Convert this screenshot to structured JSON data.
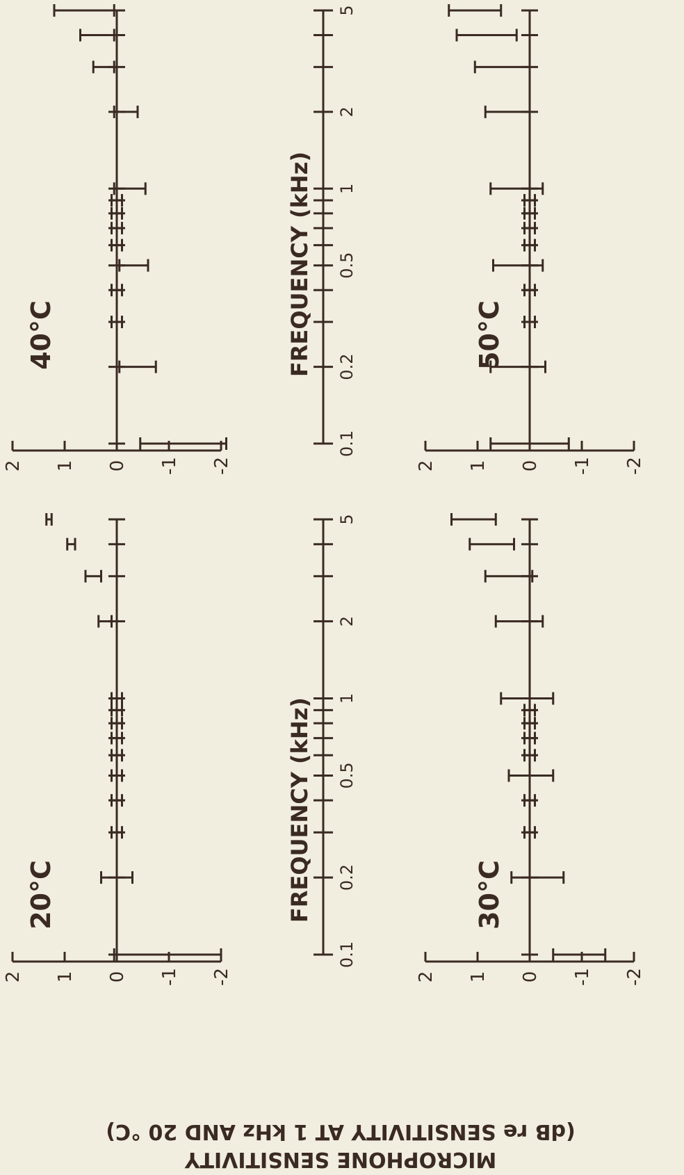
{
  "chart_data": [
    {
      "type": "scatter",
      "title": "20°C",
      "xscale": "log",
      "xticks": [
        "0.1",
        "0.2",
        "0.5",
        "1",
        "2",
        "5"
      ],
      "yticks": [
        "2",
        "1",
        "0",
        "-1",
        "-2"
      ],
      "ylim": [
        -2,
        2
      ],
      "points": [
        {
          "x": 0.1,
          "y_lo": -2.0,
          "y_hi": 0.05
        },
        {
          "x": 0.2,
          "y_lo": -0.3,
          "y_hi": 0.3
        },
        {
          "x": 0.3,
          "y_lo": -0.1,
          "y_hi": 0.1
        },
        {
          "x": 0.4,
          "y_lo": -0.1,
          "y_hi": 0.1
        },
        {
          "x": 0.5,
          "y_lo": -0.1,
          "y_hi": 0.1
        },
        {
          "x": 0.6,
          "y_lo": -0.1,
          "y_hi": 0.1
        },
        {
          "x": 0.7,
          "y_lo": -0.1,
          "y_hi": 0.1
        },
        {
          "x": 0.8,
          "y_lo": -0.1,
          "y_hi": 0.1
        },
        {
          "x": 0.9,
          "y_lo": -0.1,
          "y_hi": 0.1
        },
        {
          "x": 1.0,
          "y_lo": -0.1,
          "y_hi": 0.1
        },
        {
          "x": 2.0,
          "y_lo": 0.1,
          "y_hi": 0.35
        },
        {
          "x": 3.0,
          "y_lo": 0.3,
          "y_hi": 0.6
        },
        {
          "x": 4.0,
          "y_lo": 0.8,
          "y_hi": 0.95
        },
        {
          "x": 5.0,
          "y_lo": 1.25,
          "y_hi": 1.35
        }
      ]
    },
    {
      "type": "scatter",
      "title": "40°C",
      "xscale": "log",
      "xticks": [
        "0.1",
        "0.2",
        "0.5",
        "1",
        "2",
        "5"
      ],
      "yticks": [
        "2",
        "1",
        "0",
        "-1",
        "-2"
      ],
      "ylim": [
        -2,
        2
      ],
      "points": [
        {
          "x": 0.1,
          "y_lo": -2.1,
          "y_hi": -0.45
        },
        {
          "x": 0.2,
          "y_lo": -0.75,
          "y_hi": -0.05
        },
        {
          "x": 0.3,
          "y_lo": -0.1,
          "y_hi": 0.1
        },
        {
          "x": 0.4,
          "y_lo": -0.1,
          "y_hi": 0.1
        },
        {
          "x": 0.5,
          "y_lo": -0.6,
          "y_hi": -0.05
        },
        {
          "x": 0.6,
          "y_lo": -0.1,
          "y_hi": 0.1
        },
        {
          "x": 0.7,
          "y_lo": -0.1,
          "y_hi": 0.1
        },
        {
          "x": 0.8,
          "y_lo": -0.1,
          "y_hi": 0.1
        },
        {
          "x": 0.9,
          "y_lo": -0.1,
          "y_hi": 0.1
        },
        {
          "x": 1.0,
          "y_lo": -0.55,
          "y_hi": 0.05
        },
        {
          "x": 2.0,
          "y_lo": -0.4,
          "y_hi": 0.05
        },
        {
          "x": 3.0,
          "y_lo": 0.05,
          "y_hi": 0.45
        },
        {
          "x": 4.0,
          "y_lo": 0.05,
          "y_hi": 0.7
        },
        {
          "x": 5.0,
          "y_lo": 0.05,
          "y_hi": 1.2
        }
      ]
    },
    {
      "type": "scatter",
      "title": "30°C",
      "xscale": "log",
      "xticks": [
        "0.1",
        "0.2",
        "0.5",
        "1",
        "2",
        "5"
      ],
      "yticks": [
        "2",
        "1",
        "0",
        "-1",
        "-2"
      ],
      "ylim": [
        -2,
        2
      ],
      "points": [
        {
          "x": 0.1,
          "y_lo": -1.45,
          "y_hi": -0.45
        },
        {
          "x": 0.2,
          "y_lo": -0.65,
          "y_hi": 0.35
        },
        {
          "x": 0.3,
          "y_lo": -0.1,
          "y_hi": 0.1
        },
        {
          "x": 0.4,
          "y_lo": -0.1,
          "y_hi": 0.1
        },
        {
          "x": 0.5,
          "y_lo": -0.45,
          "y_hi": 0.4
        },
        {
          "x": 0.6,
          "y_lo": -0.1,
          "y_hi": 0.1
        },
        {
          "x": 0.7,
          "y_lo": -0.1,
          "y_hi": 0.1
        },
        {
          "x": 0.8,
          "y_lo": -0.1,
          "y_hi": 0.1
        },
        {
          "x": 0.9,
          "y_lo": -0.1,
          "y_hi": 0.1
        },
        {
          "x": 1.0,
          "y_lo": -0.45,
          "y_hi": 0.55
        },
        {
          "x": 2.0,
          "y_lo": -0.25,
          "y_hi": 0.65
        },
        {
          "x": 3.0,
          "y_lo": -0.05,
          "y_hi": 0.85
        },
        {
          "x": 4.0,
          "y_lo": 0.3,
          "y_hi": 1.15
        },
        {
          "x": 5.0,
          "y_lo": 0.65,
          "y_hi": 1.5
        }
      ]
    },
    {
      "type": "scatter",
      "title": "50°C",
      "xscale": "log",
      "xticks": [
        "0.1",
        "0.2",
        "0.5",
        "1",
        "2",
        "5"
      ],
      "yticks": [
        "2",
        "1",
        "0",
        "-1",
        "-2"
      ],
      "ylim": [
        -2,
        2
      ],
      "points": [
        {
          "x": 0.1,
          "y_lo": -0.75,
          "y_hi": 0.75
        },
        {
          "x": 0.2,
          "y_lo": -0.3,
          "y_hi": 0.75
        },
        {
          "x": 0.3,
          "y_lo": -0.1,
          "y_hi": 0.1
        },
        {
          "x": 0.4,
          "y_lo": -0.1,
          "y_hi": 0.1
        },
        {
          "x": 0.5,
          "y_lo": -0.25,
          "y_hi": 0.7
        },
        {
          "x": 0.6,
          "y_lo": -0.1,
          "y_hi": 0.1
        },
        {
          "x": 0.7,
          "y_lo": -0.1,
          "y_hi": 0.1
        },
        {
          "x": 0.8,
          "y_lo": -0.1,
          "y_hi": 0.1
        },
        {
          "x": 0.9,
          "y_lo": -0.1,
          "y_hi": 0.1
        },
        {
          "x": 1.0,
          "y_lo": -0.25,
          "y_hi": 0.75
        },
        {
          "x": 2.0,
          "y_lo": -0.0,
          "y_hi": 0.85
        },
        {
          "x": 3.0,
          "y_lo": -0.0,
          "y_hi": 1.05
        },
        {
          "x": 4.0,
          "y_lo": 0.25,
          "y_hi": 1.4
        },
        {
          "x": 5.0,
          "y_lo": 0.55,
          "y_hi": 1.55
        }
      ]
    }
  ],
  "freq_axes": [
    {
      "label": "FREQUENCY (kHz)",
      "ticks": [
        "0.1",
        "0.2",
        "0.5",
        "1",
        "2",
        "5"
      ]
    },
    {
      "label": "FREQUENCY (kHz)",
      "ticks": [
        "0.1",
        "0.2",
        "0.5",
        "1",
        "2",
        "5"
      ]
    }
  ],
  "ylabel": {
    "line1": "MICROPHONE SENSITIVITY",
    "line2": "(dB re SENSITIVITY AT 1 kHz AND 20 °C)"
  }
}
